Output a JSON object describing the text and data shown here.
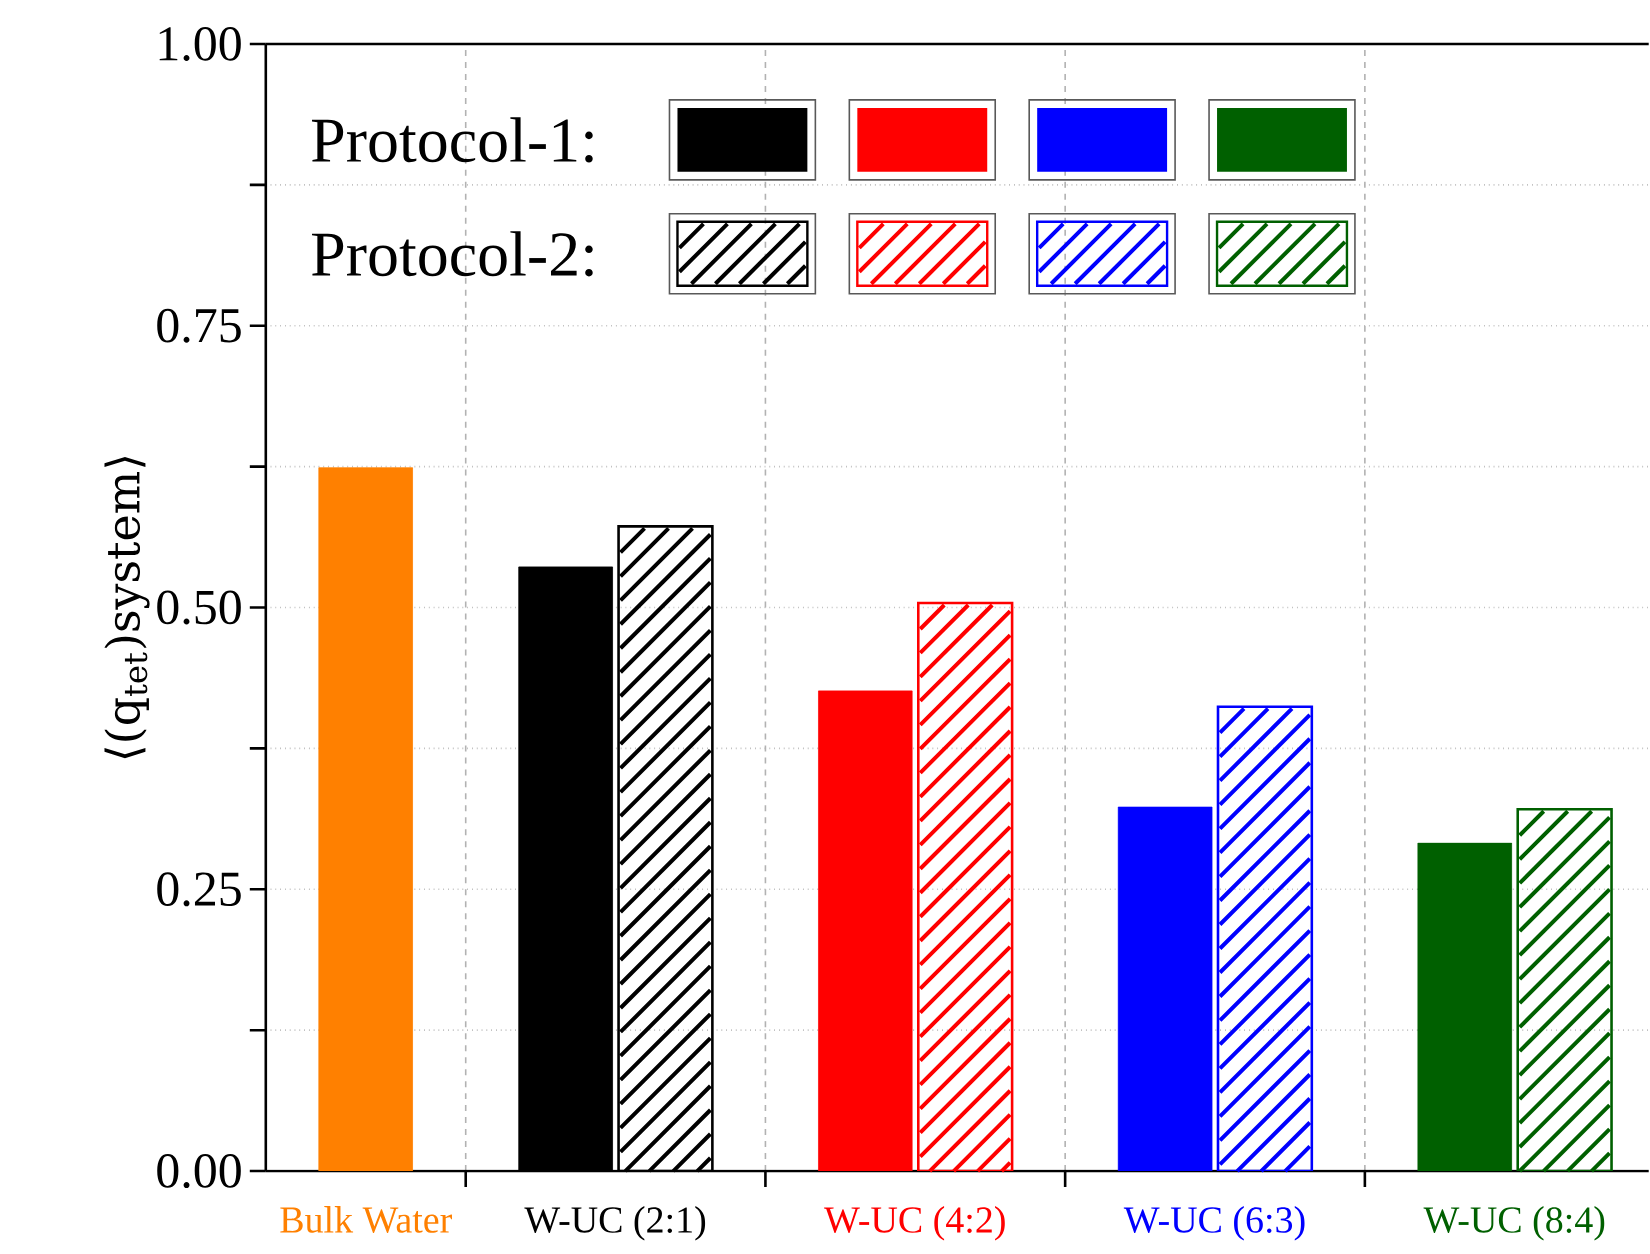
{
  "chart_data": {
    "type": "bar",
    "ylabel": "⟨(q$_{tet}$)system⟩",
    "categories": [
      "Bulk Water",
      "W-UC (2:1)",
      "W-UC (4:2)",
      "W-UC (6:3)",
      "W-UC (8:4)"
    ],
    "series": [
      {
        "colors": [
          "#ff8000",
          null,
          null,
          null,
          null
        ],
        "values": [
          0.624,
          null,
          null,
          null,
          null
        ]
      },
      {
        "name": "Protocol-1:",
        "colors": [
          null,
          "#000000",
          "#ff0000",
          "#0000ff",
          "#006000"
        ],
        "values": [
          null,
          0.536,
          0.426,
          0.323,
          0.291
        ]
      },
      {
        "name": "Protocol-2:",
        "colors": [
          null,
          "#000000",
          "#ff0000",
          "#0000ff",
          "#006000"
        ],
        "values": [
          null,
          0.572,
          0.504,
          0.412,
          0.321
        ]
      }
    ],
    "ylim": [
      0,
      1
    ],
    "yticks": [
      {
        "value": 0,
        "label": "0.00"
      },
      {
        "value": 0.125,
        "label": null
      },
      {
        "value": 0.25,
        "label": "0.25"
      },
      {
        "value": 0.375,
        "label": null
      },
      {
        "value": 0.5,
        "label": "0.50"
      },
      {
        "value": 0.625,
        "label": null
      },
      {
        "value": 0.75,
        "label": "0.75"
      },
      {
        "value": 0.875,
        "label": null
      },
      {
        "value": 1,
        "label": "1.00"
      }
    ],
    "grid": true,
    "legend": "top left"
  }
}
